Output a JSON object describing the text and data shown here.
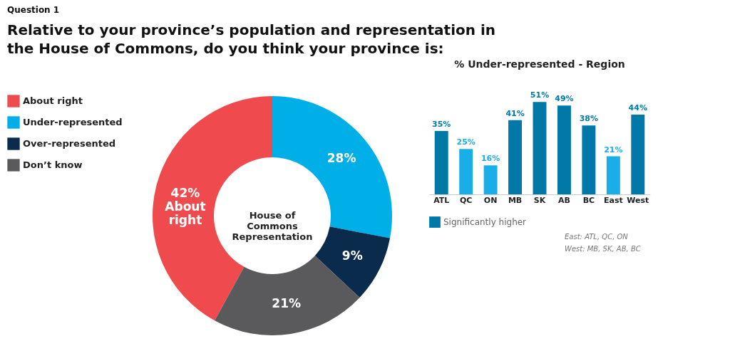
{
  "chart_data": [
    {
      "type": "donut",
      "title": "Question 1",
      "subtitle": "Relative to your province’s population and representation in the House of Commons, do you think your province is:",
      "categories": [
        "About right",
        "Under-represented",
        "Over-represented",
        "Don’t know"
      ],
      "values": [
        42,
        28,
        9,
        21
      ],
      "colors": [
        "#ef4b4f",
        "#00aee8",
        "#0b2b4c",
        "#5a5a5c"
      ],
      "value_labels": [
        "42% About right",
        "28%",
        "9%",
        "21%"
      ],
      "annotations": [
        "House of\nCommons\nRepresentation"
      ],
      "legend": "left"
    },
    {
      "type": "bar",
      "title": "% Under-represented - Region",
      "categories": [
        "ATL",
        "QC",
        "ON",
        "MB",
        "SK",
        "AB",
        "BC",
        "East",
        "West"
      ],
      "series": [
        {
          "name": "Significantly higher",
          "color": "#0079a8",
          "values": [
            35,
            null,
            null,
            41,
            51,
            49,
            38,
            null,
            44
          ],
          "value_labels": [
            "35%",
            null,
            null,
            "41%",
            "51%",
            "49%",
            "38%",
            null,
            "44%"
          ]
        },
        {
          "color": "#1aaee8",
          "values": [
            null,
            25,
            16,
            null,
            null,
            null,
            null,
            21,
            null
          ],
          "value_labels": [
            null,
            "25%",
            "16%",
            null,
            null,
            null,
            null,
            "21%",
            null
          ]
        }
      ],
      "tick_labels": "x",
      "legend": "bottom",
      "annotations": [
        "East: ATL, QC, ON",
        "West: MB, SK, AB, BC"
      ]
    }
  ]
}
